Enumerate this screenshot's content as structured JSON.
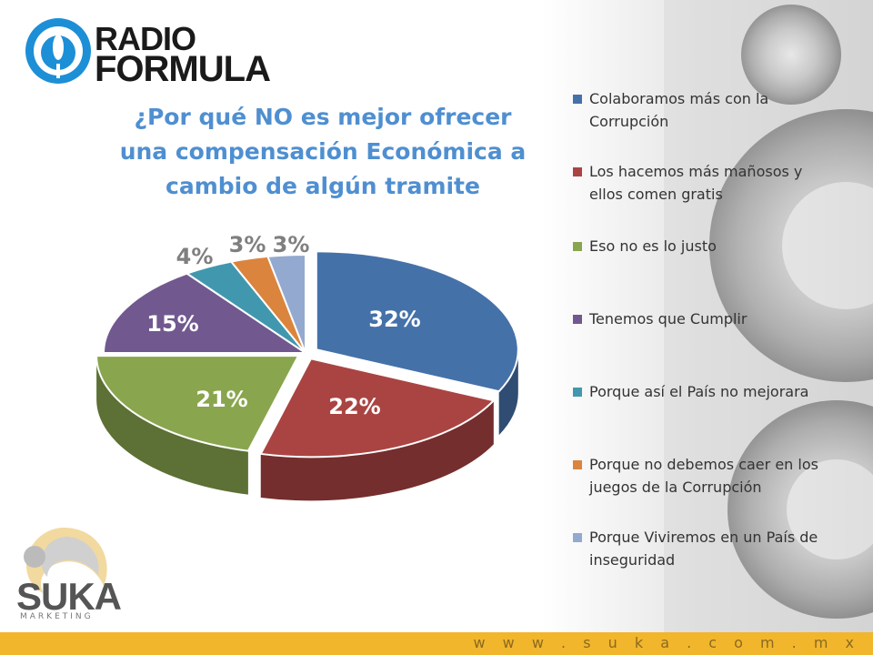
{
  "brand": {
    "name_line1": "RADIO",
    "name_line2": "FORMULA",
    "sponsor_word": "SUKA",
    "sponsor_sub": "MARKETING",
    "website": "w w w . s u k a . c o m . m x",
    "footer_color": "#f2b62c"
  },
  "chart_data": {
    "type": "pie",
    "title": "¿Por qué NO es mejor ofrecer una compensación Económica a cambio de algún tramite",
    "legend_position": "right",
    "labels": [
      "Colaboramos más con la Corrupción",
      "Los hacemos más mañosos y ellos comen gratis",
      "Eso no es lo justo",
      "Tenemos que Cumplir",
      "Porque así el País no mejorara",
      "Porque no debemos caer en los juegos de la Corrupción",
      "Porque Viviremos en un País de inseguridad"
    ],
    "values": [
      32,
      22,
      21,
      15,
      4,
      3,
      3
    ],
    "value_labels": [
      "32%",
      "22%",
      "21%",
      "15%",
      "4%",
      "3%",
      "3%"
    ],
    "colors": [
      "#4571a9",
      "#aa4442",
      "#89a54e",
      "#71588f",
      "#4198ae",
      "#db843d",
      "#93a9cf"
    ]
  }
}
